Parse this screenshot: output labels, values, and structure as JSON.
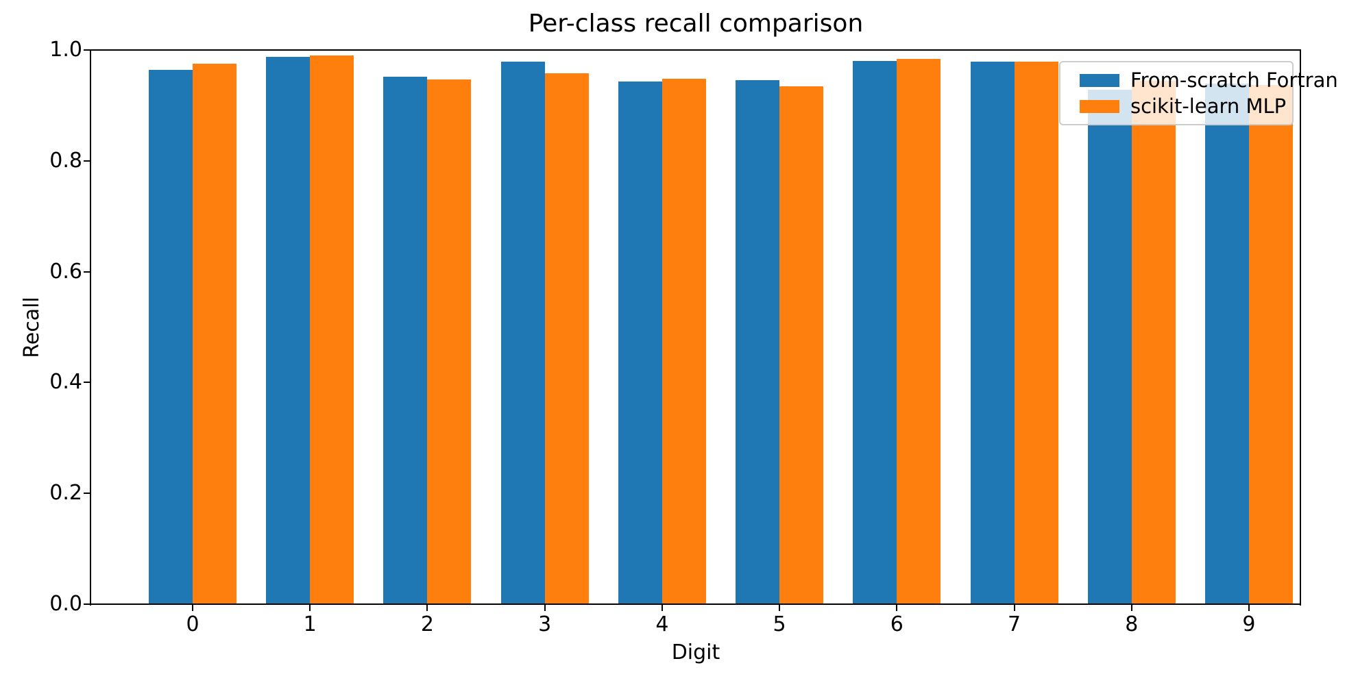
{
  "figure": {
    "title": "Per-class recall comparison",
    "xlabel": "Digit",
    "ylabel": "Recall"
  },
  "legend": {
    "position": "upper right",
    "items": [
      {
        "label": "From-scratch Fortran",
        "color": "#1f77b4"
      },
      {
        "label": "scikit-learn MLP",
        "color": "#ff7f0e"
      }
    ]
  },
  "axes": {
    "ytick_labels": [
      "0.0",
      "0.2",
      "0.4",
      "0.6",
      "0.8",
      "1.0"
    ],
    "ytick_values": [
      0.0,
      0.2,
      0.4,
      0.6,
      0.8,
      1.0
    ],
    "xtick_labels": [
      "0",
      "1",
      "2",
      "3",
      "4",
      "5",
      "6",
      "7",
      "8",
      "9"
    ]
  },
  "chart_data": {
    "type": "bar",
    "title": "Per-class recall comparison",
    "xlabel": "Digit",
    "ylabel": "Recall",
    "categories": [
      "0",
      "1",
      "2",
      "3",
      "4",
      "5",
      "6",
      "7",
      "8",
      "9"
    ],
    "series": [
      {
        "name": "From-scratch Fortran",
        "color": "#1f77b4",
        "values": [
          0.964,
          0.988,
          0.952,
          0.979,
          0.943,
          0.945,
          0.98,
          0.979,
          0.928,
          0.939
        ]
      },
      {
        "name": "scikit-learn MLP",
        "color": "#ff7f0e",
        "values": [
          0.975,
          0.99,
          0.947,
          0.958,
          0.948,
          0.934,
          0.984,
          0.979,
          0.944,
          0.937
        ]
      }
    ],
    "ylim": [
      0.0,
      1.0
    ],
    "yticks": [
      0.0,
      0.2,
      0.4,
      0.6,
      0.8,
      1.0
    ],
    "grid": false,
    "legend_position": "upper right",
    "bar_group_gap": 1.0,
    "bar_width_fraction": 0.375
  }
}
